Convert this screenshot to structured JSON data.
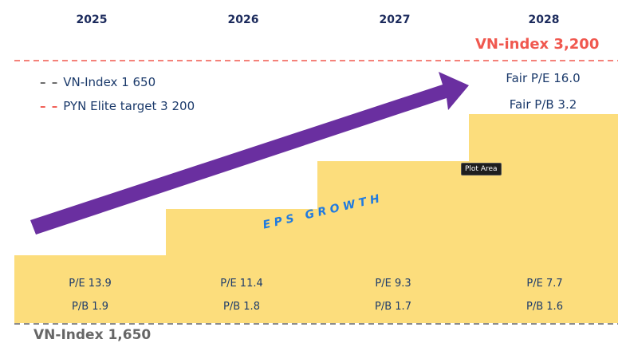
{
  "years": [
    "2025",
    "2026",
    "2027",
    "2028"
  ],
  "target_label": "VN-index 3,200",
  "base_label": "VN-Index 1,650",
  "legend": [
    {
      "label": "VN-Index 1 650",
      "color": "#666666"
    },
    {
      "label": "PYN Elite target 3 200",
      "color": "#f0584f"
    }
  ],
  "steps": [
    {
      "pe": "P/E 13.9",
      "pb": "P/B 1.9"
    },
    {
      "pe": "P/E 11.4",
      "pb": "P/B 1.8"
    },
    {
      "pe": "P/E 9.3",
      "pb": "P/B 1.7"
    },
    {
      "pe": "P/E 7.7",
      "pb": "P/B 1.6"
    }
  ],
  "fair": {
    "pe": "Fair P/E 16.0",
    "pb": "Fair P/B 3.2"
  },
  "arrow_label": "E P S   G R O W T H",
  "tooltip": "Plot Area",
  "colors": {
    "bar": "#fcdd7c",
    "arrow": "#6a2fa0",
    "target": "#f0584f",
    "base": "#666666",
    "text": "#1b3a6b",
    "eps": "#1f7ae0"
  }
}
